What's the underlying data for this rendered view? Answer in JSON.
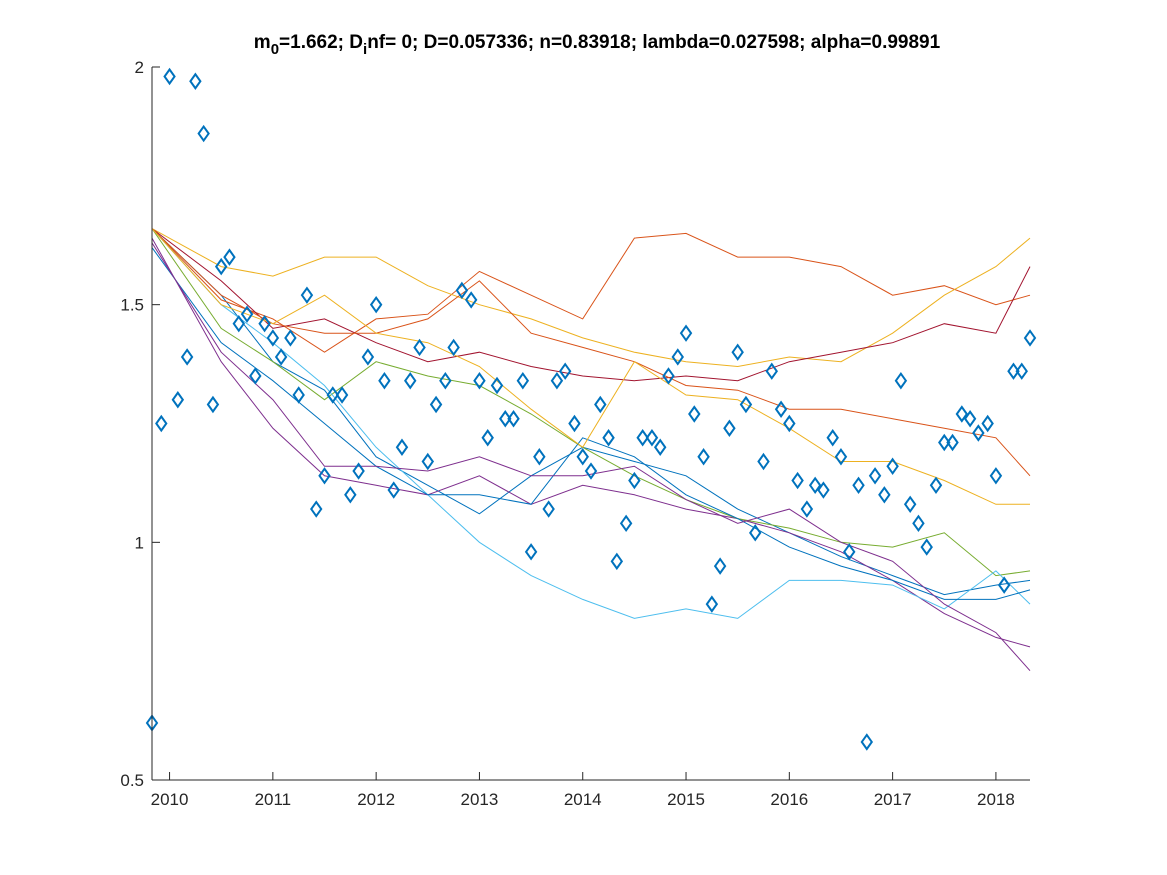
{
  "chart_data": {
    "type": "line",
    "title": {
      "p1": "m",
      "sub1": "0",
      "p2": "=1.662; D",
      "sub2": "i",
      "p3": "nf= 0; D=0.057336; n=0.83918; lambda=0.027598; alpha=0.99891"
    },
    "xlabel": "",
    "ylabel": "",
    "xlim": [
      2009.83,
      2018.33
    ],
    "ylim": [
      0.5,
      2
    ],
    "x_ticks": [
      2010,
      2011,
      2012,
      2013,
      2014,
      2015,
      2016,
      2017,
      2018
    ],
    "x_tick_labels": [
      "2010",
      "2011",
      "2012",
      "2013",
      "2014",
      "2015",
      "2016",
      "2017",
      "2018"
    ],
    "y_ticks": [
      0.5,
      1,
      1.5,
      2
    ],
    "y_tick_labels": [
      "0.5",
      "1",
      "1.5",
      "2"
    ],
    "grid": false,
    "series": [
      {
        "color": "#0072BD",
        "x": [
          2009.83,
          2010.5,
          2011.0,
          2011.5,
          2012.0,
          2012.5,
          2013.0,
          2013.5,
          2014.0,
          2014.5,
          2015.0,
          2015.5,
          2016.0,
          2016.5,
          2017.0,
          2017.5,
          2018.0,
          2018.33
        ],
        "y": [
          1.66,
          1.52,
          1.38,
          1.32,
          1.18,
          1.12,
          1.06,
          1.14,
          1.2,
          1.17,
          1.14,
          1.07,
          1.02,
          0.97,
          0.93,
          0.89,
          0.91,
          0.92
        ]
      },
      {
        "color": "#D95319",
        "x": [
          2009.83,
          2010.5,
          2011.0,
          2011.5,
          2012.0,
          2012.5,
          2013.0,
          2013.5,
          2014.0,
          2014.5,
          2015.0,
          2015.5,
          2016.0,
          2016.5,
          2017.0,
          2017.5,
          2018.0,
          2018.33
        ],
        "y": [
          1.66,
          1.51,
          1.47,
          1.4,
          1.47,
          1.48,
          1.57,
          1.52,
          1.47,
          1.64,
          1.65,
          1.6,
          1.6,
          1.58,
          1.52,
          1.54,
          1.5,
          1.52
        ]
      },
      {
        "color": "#EDB120",
        "x": [
          2009.83,
          2010.5,
          2011.0,
          2011.5,
          2012.0,
          2012.5,
          2013.0,
          2013.5,
          2014.0,
          2014.5,
          2015.0,
          2015.5,
          2016.0,
          2016.5,
          2017.0,
          2017.5,
          2018.0,
          2018.33
        ],
        "y": [
          1.66,
          1.58,
          1.56,
          1.6,
          1.6,
          1.54,
          1.5,
          1.47,
          1.43,
          1.4,
          1.38,
          1.37,
          1.39,
          1.38,
          1.44,
          1.52,
          1.58,
          1.64
        ]
      },
      {
        "color": "#7E2F8E",
        "x": [
          2009.83,
          2010.5,
          2011.0,
          2011.5,
          2012.0,
          2012.5,
          2013.0,
          2013.5,
          2014.0,
          2014.5,
          2015.0,
          2015.5,
          2016.0,
          2016.5,
          2017.0,
          2017.5,
          2018.0,
          2018.33
        ],
        "y": [
          1.64,
          1.38,
          1.24,
          1.14,
          1.12,
          1.1,
          1.14,
          1.08,
          1.12,
          1.1,
          1.07,
          1.05,
          1.02,
          0.98,
          0.92,
          0.85,
          0.8,
          0.78
        ]
      },
      {
        "color": "#77AC30",
        "x": [
          2009.83,
          2010.5,
          2011.0,
          2011.5,
          2012.0,
          2012.5,
          2013.0,
          2013.5,
          2014.0,
          2014.5,
          2015.0,
          2015.5,
          2016.0,
          2016.5,
          2017.0,
          2017.5,
          2018.0,
          2018.33
        ],
        "y": [
          1.66,
          1.45,
          1.38,
          1.3,
          1.38,
          1.35,
          1.33,
          1.27,
          1.2,
          1.14,
          1.09,
          1.05,
          1.03,
          1.0,
          0.99,
          1.02,
          0.93,
          0.94
        ]
      },
      {
        "color": "#4DBEEE",
        "x": [
          2009.83,
          2010.5,
          2011.0,
          2011.5,
          2012.0,
          2012.5,
          2013.0,
          2013.5,
          2014.0,
          2014.5,
          2015.0,
          2015.5,
          2016.0,
          2016.5,
          2017.0,
          2017.5,
          2018.0,
          2018.33
        ],
        "y": [
          1.66,
          1.5,
          1.42,
          1.33,
          1.2,
          1.1,
          1.0,
          0.93,
          0.88,
          0.84,
          0.86,
          0.84,
          0.92,
          0.92,
          0.91,
          0.86,
          0.94,
          0.87
        ]
      },
      {
        "color": "#A2142F",
        "x": [
          2009.83,
          2010.5,
          2011.0,
          2011.5,
          2012.0,
          2012.5,
          2013.0,
          2013.5,
          2014.0,
          2014.5,
          2015.0,
          2015.5,
          2016.0,
          2016.5,
          2017.0,
          2017.5,
          2018.0,
          2018.33
        ],
        "y": [
          1.66,
          1.55,
          1.45,
          1.47,
          1.42,
          1.38,
          1.4,
          1.37,
          1.35,
          1.34,
          1.35,
          1.34,
          1.38,
          1.4,
          1.42,
          1.46,
          1.44,
          1.58
        ]
      },
      {
        "color": "#0072BD",
        "x": [
          2009.83,
          2010.5,
          2011.0,
          2011.5,
          2012.0,
          2012.5,
          2013.0,
          2013.5,
          2014.0,
          2014.5,
          2015.0,
          2015.5,
          2016.0,
          2016.5,
          2017.0,
          2017.5,
          2018.0,
          2018.33
        ],
        "y": [
          1.62,
          1.42,
          1.34,
          1.25,
          1.16,
          1.1,
          1.1,
          1.08,
          1.22,
          1.18,
          1.1,
          1.05,
          0.99,
          0.95,
          0.92,
          0.88,
          0.88,
          0.9
        ]
      },
      {
        "color": "#D95319",
        "x": [
          2009.83,
          2010.5,
          2011.0,
          2011.5,
          2012.0,
          2012.5,
          2013.0,
          2013.5,
          2014.0,
          2014.5,
          2015.0,
          2015.5,
          2016.0,
          2016.5,
          2017.0,
          2017.5,
          2018.0,
          2018.33
        ],
        "y": [
          1.66,
          1.52,
          1.46,
          1.44,
          1.44,
          1.47,
          1.55,
          1.44,
          1.41,
          1.38,
          1.33,
          1.32,
          1.28,
          1.28,
          1.26,
          1.24,
          1.22,
          1.14
        ]
      },
      {
        "color": "#EDB120",
        "x": [
          2009.83,
          2010.5,
          2011.0,
          2011.5,
          2012.0,
          2012.5,
          2013.0,
          2013.5,
          2014.0,
          2014.5,
          2015.0,
          2015.5,
          2016.0,
          2016.5,
          2017.0,
          2017.5,
          2018.0,
          2018.33
        ],
        "y": [
          1.66,
          1.5,
          1.46,
          1.52,
          1.44,
          1.42,
          1.37,
          1.28,
          1.2,
          1.38,
          1.31,
          1.3,
          1.24,
          1.17,
          1.17,
          1.13,
          1.08,
          1.08
        ]
      },
      {
        "color": "#7E2F8E",
        "x": [
          2009.83,
          2010.5,
          2011.0,
          2011.5,
          2012.0,
          2012.5,
          2013.0,
          2013.5,
          2014.0,
          2014.5,
          2015.0,
          2015.5,
          2016.0,
          2016.5,
          2017.0,
          2017.5,
          2018.0,
          2018.33
        ],
        "y": [
          1.63,
          1.4,
          1.3,
          1.16,
          1.16,
          1.15,
          1.18,
          1.14,
          1.14,
          1.16,
          1.09,
          1.04,
          1.07,
          1.0,
          0.96,
          0.87,
          0.81,
          0.73
        ]
      }
    ],
    "scatter": {
      "marker": "diamond",
      "color": "#0072BD",
      "x": [
        2009.83,
        2009.92,
        2010.0,
        2010.08,
        2010.17,
        2010.25,
        2010.33,
        2010.42,
        2010.5,
        2010.58,
        2010.67,
        2010.75,
        2010.83,
        2010.92,
        2011.0,
        2011.08,
        2011.17,
        2011.25,
        2011.33,
        2011.42,
        2011.5,
        2011.58,
        2011.67,
        2011.75,
        2011.83,
        2011.92,
        2012.0,
        2012.08,
        2012.17,
        2012.25,
        2012.33,
        2012.42,
        2012.5,
        2012.58,
        2012.67,
        2012.75,
        2012.83,
        2012.92,
        2013.0,
        2013.08,
        2013.17,
        2013.25,
        2013.33,
        2013.42,
        2013.5,
        2013.58,
        2013.67,
        2013.75,
        2013.83,
        2013.92,
        2014.0,
        2014.08,
        2014.17,
        2014.25,
        2014.33,
        2014.42,
        2014.5,
        2014.58,
        2014.67,
        2014.75,
        2014.83,
        2014.92,
        2015.0,
        2015.08,
        2015.17,
        2015.25,
        2015.33,
        2015.42,
        2015.5,
        2015.58,
        2015.67,
        2015.75,
        2015.83,
        2015.92,
        2016.0,
        2016.08,
        2016.17,
        2016.25,
        2016.33,
        2016.42,
        2016.5,
        2016.58,
        2016.67,
        2016.75,
        2016.83,
        2016.92,
        2017.0,
        2017.08,
        2017.17,
        2017.25,
        2017.33,
        2017.42,
        2017.5,
        2017.58,
        2017.67,
        2017.75,
        2017.83,
        2017.92,
        2018.0,
        2018.08,
        2018.17,
        2018.25,
        2018.33
      ],
      "y": [
        0.62,
        1.25,
        1.98,
        1.3,
        1.39,
        1.97,
        1.86,
        1.29,
        1.58,
        1.6,
        1.46,
        1.48,
        1.35,
        1.46,
        1.43,
        1.39,
        1.43,
        1.31,
        1.52,
        1.07,
        1.14,
        1.31,
        1.31,
        1.1,
        1.15,
        1.39,
        1.5,
        1.34,
        1.11,
        1.2,
        1.34,
        1.41,
        1.17,
        1.29,
        1.34,
        1.41,
        1.53,
        1.51,
        1.34,
        1.22,
        1.33,
        1.26,
        1.26,
        1.34,
        0.98,
        1.18,
        1.07,
        1.34,
        1.36,
        1.25,
        1.18,
        1.15,
        1.29,
        1.22,
        0.96,
        1.04,
        1.13,
        1.22,
        1.22,
        1.2,
        1.35,
        1.39,
        1.44,
        1.27,
        1.18,
        0.87,
        0.95,
        1.24,
        1.4,
        1.29,
        1.02,
        1.17,
        1.36,
        1.28,
        1.25,
        1.13,
        1.07,
        1.12,
        1.11,
        1.22,
        1.18,
        0.98,
        1.12,
        0.58,
        1.14,
        1.1,
        1.16,
        1.34,
        1.08,
        1.04,
        0.99,
        1.12,
        1.21,
        1.21,
        1.27,
        1.26,
        1.23,
        1.25,
        1.14,
        0.91,
        1.36,
        1.36,
        1.43
      ]
    }
  }
}
